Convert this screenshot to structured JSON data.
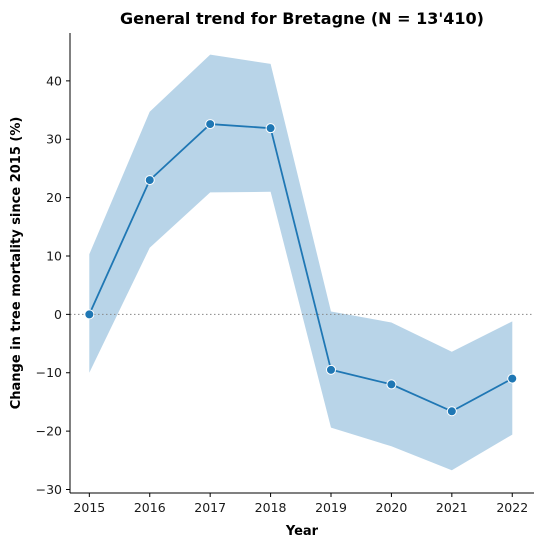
{
  "chart_data": {
    "type": "line",
    "title": "General trend for Bretagne  (N = 13'410)",
    "xlabel": "Year",
    "ylabel": "Change in tree mortality since 2015 (%)",
    "x": [
      2015,
      2016,
      2017,
      2018,
      2019,
      2020,
      2021,
      2022
    ],
    "series": [
      {
        "values": [
          0,
          23,
          32.6,
          31.9,
          -9.5,
          -12,
          -16.6,
          -11
        ],
        "ci_upper": [
          10.3,
          34.7,
          44.5,
          42.9,
          0.5,
          -1.4,
          -6.4,
          -1.2
        ],
        "ci_lower": [
          -10,
          11.4,
          20.9,
          21,
          -19.4,
          -22.6,
          -26.7,
          -20.6
        ]
      }
    ],
    "y_ticks": [
      -30,
      -20,
      -10,
      0,
      10,
      20,
      30,
      40
    ],
    "y_tick_labels": [
      "−30",
      "−20",
      "−10",
      "0",
      "10",
      "20",
      "30",
      "40"
    ],
    "x_tick_labels": [
      "2015",
      "2016",
      "2017",
      "2018",
      "2019",
      "2020",
      "2021",
      "2022"
    ],
    "xlim": [
      2014.68,
      2022.36
    ],
    "ylim": [
      -30.6,
      48.2
    ],
    "reference_line": 0,
    "grid": false,
    "colors": {
      "line": "#1f77b4",
      "band": "#b8d4e8",
      "marker_edge": "#ffffff",
      "reference": "#888888"
    }
  }
}
